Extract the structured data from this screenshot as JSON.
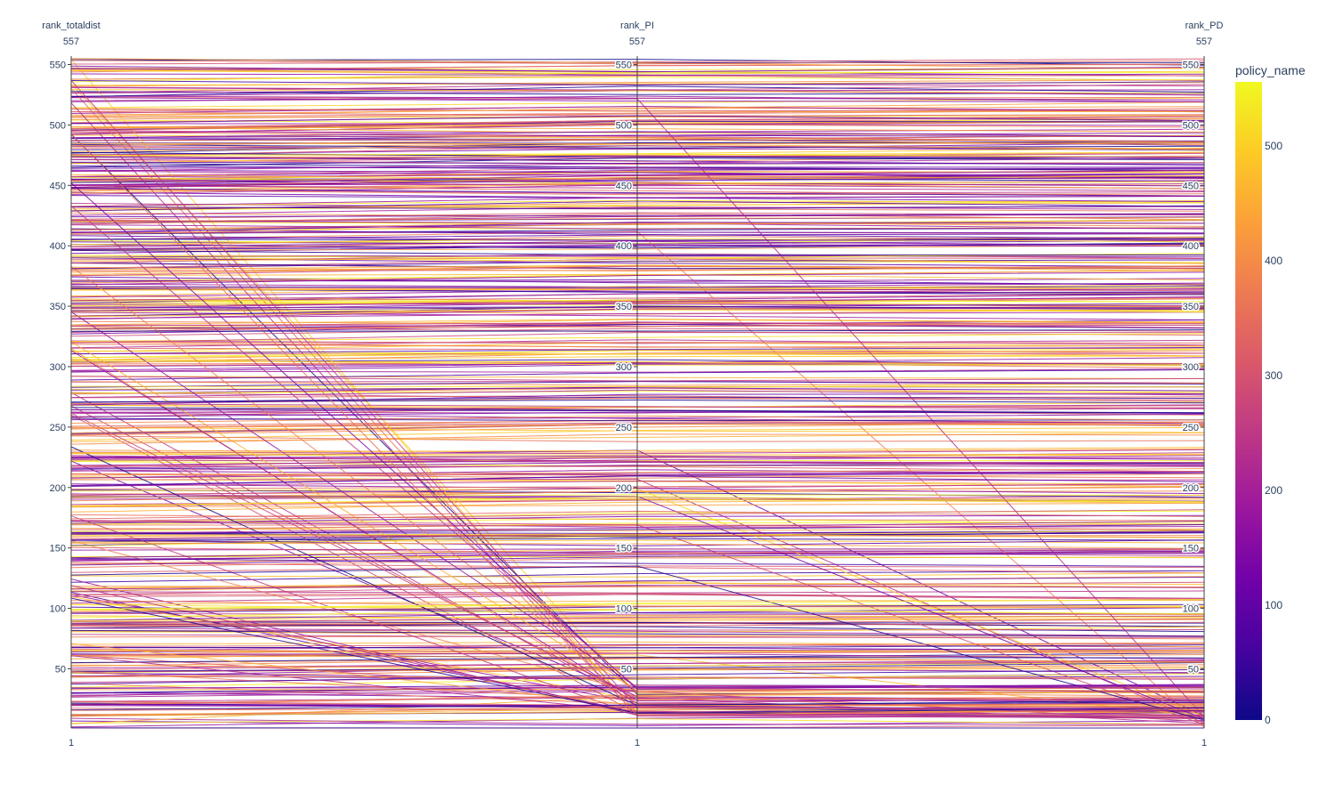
{
  "chart_data": {
    "type": "parallel_coordinates",
    "dimensions": [
      {
        "label": "rank_totaldist",
        "range": [
          1,
          557
        ],
        "range_max_label": "557",
        "range_min_label": "1",
        "ticks": [
          50,
          100,
          150,
          200,
          250,
          300,
          350,
          400,
          450,
          500,
          550
        ]
      },
      {
        "label": "rank_PI",
        "range": [
          1,
          557
        ],
        "range_max_label": "557",
        "range_min_label": "1",
        "ticks": [
          50,
          100,
          150,
          200,
          250,
          300,
          350,
          400,
          450,
          500,
          550
        ]
      },
      {
        "label": "rank_PD",
        "range": [
          1,
          557
        ],
        "range_max_label": "557",
        "range_min_label": "1",
        "ticks": [
          50,
          100,
          150,
          200,
          250,
          300,
          350,
          400,
          450,
          500,
          550
        ]
      }
    ],
    "line_count": 557,
    "color_variable": "policy_name",
    "colorscale": [
      "#0d0887",
      "#46039f",
      "#7201a8",
      "#9c179e",
      "#bd3786",
      "#d8576b",
      "#ed7953",
      "#fb9f3a",
      "#fdca26",
      "#f0f921"
    ],
    "colorbar": {
      "title": "policy_name",
      "range": [
        0,
        556
      ],
      "ticks": [
        "0",
        "100",
        "200",
        "300",
        "400",
        "500"
      ]
    }
  }
}
